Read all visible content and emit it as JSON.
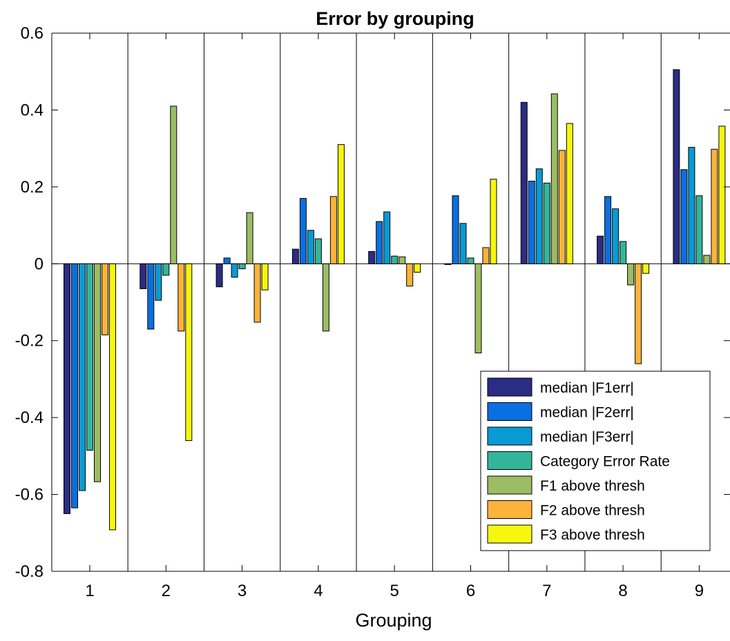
{
  "chart_data": {
    "type": "bar",
    "title": "Error by grouping",
    "xlabel": "Grouping",
    "ylabel": "",
    "categories": [
      "1",
      "2",
      "3",
      "4",
      "5",
      "6",
      "7",
      "8",
      "9"
    ],
    "ylim": [
      -0.8,
      0.6
    ],
    "yticks": [
      "-0.8",
      "-0.6",
      "-0.4",
      "-0.2",
      "0",
      "0.2",
      "0.4",
      "0.6"
    ],
    "grid": "vertical separators between groups",
    "legend_position": "bottom-right",
    "series": [
      {
        "name": "median |F1err|",
        "color": "#2b2c83",
        "values": [
          -0.65,
          -0.065,
          -0.06,
          0.038,
          0.032,
          -0.002,
          0.42,
          0.072,
          0.505
        ]
      },
      {
        "name": "median |F2err|",
        "color": "#0a6fe0",
        "values": [
          -0.635,
          -0.17,
          0.015,
          0.17,
          0.11,
          0.177,
          0.215,
          0.175,
          0.245
        ]
      },
      {
        "name": "median |F3err|",
        "color": "#0a9ad4",
        "values": [
          -0.59,
          -0.095,
          -0.035,
          0.087,
          0.135,
          0.105,
          0.247,
          0.143,
          0.303
        ]
      },
      {
        "name": "Category Error Rate",
        "color": "#34b59a",
        "values": [
          -0.485,
          -0.03,
          -0.013,
          0.065,
          0.02,
          0.015,
          0.21,
          0.058,
          0.177
        ]
      },
      {
        "name": "F1 above thresh",
        "color": "#9bbd63",
        "values": [
          -0.567,
          0.41,
          0.133,
          -0.175,
          0.018,
          -0.232,
          0.442,
          -0.055,
          0.022
        ]
      },
      {
        "name": "F2 above thresh",
        "color": "#fbb33b",
        "values": [
          -0.185,
          -0.175,
          -0.152,
          0.175,
          -0.058,
          0.042,
          0.295,
          -0.26,
          0.298
        ]
      },
      {
        "name": "F3 above thresh",
        "color": "#f6f60f",
        "values": [
          -0.692,
          -0.46,
          -0.068,
          0.31,
          -0.022,
          0.22,
          0.365,
          -0.025,
          0.358
        ]
      }
    ]
  }
}
